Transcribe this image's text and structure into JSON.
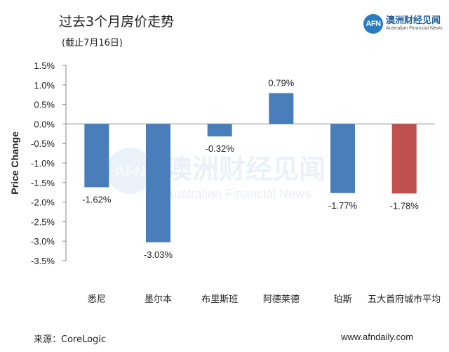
{
  "header": {
    "title": "过去3个月房价走势",
    "subtitle": "(截止7月16日)"
  },
  "logo": {
    "badge": "AFN",
    "name_cn": "澳洲财经见闻",
    "name_en": "Australian Financial News"
  },
  "watermark": {
    "badge": "AFN",
    "name_cn": "澳洲财经见闻",
    "name_en": "Australian Financial News"
  },
  "footer": {
    "source": "来源：CoreLogic",
    "website": "www.afndaily.com"
  },
  "colors": {
    "bar_default": "#4a7ebb",
    "bar_highlight": "#c0504d",
    "axis": "#888888"
  },
  "chart_data": {
    "type": "bar",
    "title": "过去3个月房价走势",
    "subtitle": "(截止7月16日)",
    "xlabel": "",
    "ylabel": "Price Change",
    "ylim": [
      -3.5,
      1.5
    ],
    "yticks": [
      1.5,
      1.0,
      0.5,
      0.0,
      -0.5,
      -1.0,
      -1.5,
      -2.0,
      -2.5,
      -3.0,
      -3.5
    ],
    "ytick_labels": [
      "1.5%",
      "1.0%",
      "0.5%",
      "0.0%",
      "-0.5%",
      "-1.0%",
      "-1.5%",
      "-2.0%",
      "-2.5%",
      "-3.0%",
      "-3.5%"
    ],
    "categories": [
      "悉尼",
      "墨尔本",
      "布里斯班",
      "阿德莱德",
      "珀斯",
      "五大首府城市平均"
    ],
    "values": [
      -1.62,
      -3.03,
      -0.32,
      0.79,
      -1.77,
      -1.78
    ],
    "data_labels": [
      "-1.62%",
      "-3.03%",
      "-0.32%",
      "0.79%",
      "-1.77%",
      "-1.78%"
    ],
    "highlight_index": 5,
    "grid": false,
    "legend": "none"
  }
}
